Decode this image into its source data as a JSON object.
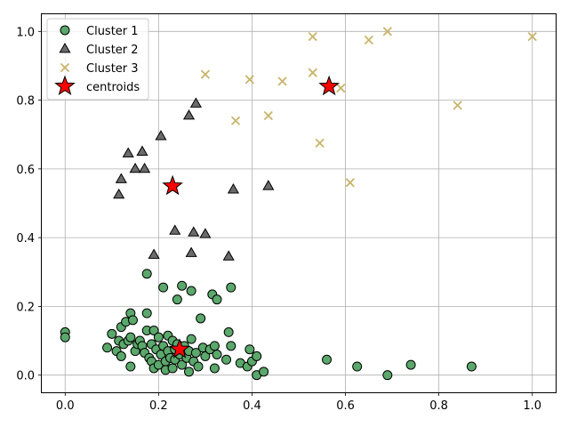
{
  "chart_data": {
    "type": "scatter",
    "xlim": [
      -0.05,
      1.05
    ],
    "ylim": [
      -0.05,
      1.05
    ],
    "x_ticks": [
      0.0,
      0.2,
      0.4,
      0.6,
      0.8,
      1.0
    ],
    "y_ticks": [
      0.0,
      0.2,
      0.4,
      0.6,
      0.8,
      1.0
    ],
    "x_tick_labels": [
      "0.0",
      "0.2",
      "0.4",
      "0.6",
      "0.8",
      "1.0"
    ],
    "y_tick_labels": [
      "0.0",
      "0.2",
      "0.4",
      "0.6",
      "0.8",
      "1.0"
    ],
    "grid": true,
    "legend_position": "top-left",
    "series": [
      {
        "name": "Cluster 1",
        "marker": "circle",
        "color": "#5aa86b",
        "points": [
          [
            0.0,
            0.125
          ],
          [
            0.0,
            0.11
          ],
          [
            0.09,
            0.08
          ],
          [
            0.1,
            0.12
          ],
          [
            0.11,
            0.07
          ],
          [
            0.115,
            0.1
          ],
          [
            0.12,
            0.055
          ],
          [
            0.12,
            0.14
          ],
          [
            0.125,
            0.09
          ],
          [
            0.13,
            0.155
          ],
          [
            0.135,
            0.1
          ],
          [
            0.14,
            0.18
          ],
          [
            0.14,
            0.11
          ],
          [
            0.14,
            0.025
          ],
          [
            0.145,
            0.16
          ],
          [
            0.15,
            0.07
          ],
          [
            0.155,
            0.09
          ],
          [
            0.16,
            0.1
          ],
          [
            0.165,
            0.085
          ],
          [
            0.17,
            0.065
          ],
          [
            0.175,
            0.18
          ],
          [
            0.175,
            0.13
          ],
          [
            0.175,
            0.295
          ],
          [
            0.18,
            0.05
          ],
          [
            0.185,
            0.04
          ],
          [
            0.185,
            0.09
          ],
          [
            0.19,
            0.02
          ],
          [
            0.19,
            0.13
          ],
          [
            0.195,
            0.075
          ],
          [
            0.2,
            0.03
          ],
          [
            0.2,
            0.11
          ],
          [
            0.205,
            0.06
          ],
          [
            0.21,
            0.255
          ],
          [
            0.21,
            0.085
          ],
          [
            0.215,
            0.04
          ],
          [
            0.215,
            0.015
          ],
          [
            0.22,
            0.115
          ],
          [
            0.22,
            0.07
          ],
          [
            0.225,
            0.05
          ],
          [
            0.23,
            0.1
          ],
          [
            0.23,
            0.02
          ],
          [
            0.235,
            0.075
          ],
          [
            0.235,
            0.045
          ],
          [
            0.24,
            0.22
          ],
          [
            0.24,
            0.09
          ],
          [
            0.245,
            0.06
          ],
          [
            0.25,
            0.26
          ],
          [
            0.25,
            0.03
          ],
          [
            0.255,
            0.085
          ],
          [
            0.26,
            0.05
          ],
          [
            0.265,
            0.01
          ],
          [
            0.265,
            0.07
          ],
          [
            0.27,
            0.245
          ],
          [
            0.27,
            0.105
          ],
          [
            0.275,
            0.04
          ],
          [
            0.28,
            0.065
          ],
          [
            0.285,
            0.025
          ],
          [
            0.29,
            0.165
          ],
          [
            0.295,
            0.08
          ],
          [
            0.3,
            0.055
          ],
          [
            0.31,
            0.075
          ],
          [
            0.315,
            0.235
          ],
          [
            0.32,
            0.02
          ],
          [
            0.32,
            0.085
          ],
          [
            0.325,
            0.22
          ],
          [
            0.325,
            0.06
          ],
          [
            0.345,
            0.045
          ],
          [
            0.35,
            0.125
          ],
          [
            0.355,
            0.085
          ],
          [
            0.355,
            0.255
          ],
          [
            0.375,
            0.035
          ],
          [
            0.39,
            0.025
          ],
          [
            0.395,
            0.075
          ],
          [
            0.4,
            0.04
          ],
          [
            0.41,
            0.055
          ],
          [
            0.41,
            0.0
          ],
          [
            0.425,
            0.01
          ],
          [
            0.56,
            0.045
          ],
          [
            0.625,
            0.025
          ],
          [
            0.69,
            0.0
          ],
          [
            0.74,
            0.03
          ],
          [
            0.87,
            0.025
          ]
        ]
      },
      {
        "name": "Cluster 2",
        "marker": "triangle",
        "color": "#6b6b6b",
        "points": [
          [
            0.115,
            0.525
          ],
          [
            0.12,
            0.57
          ],
          [
            0.135,
            0.645
          ],
          [
            0.15,
            0.6
          ],
          [
            0.165,
            0.65
          ],
          [
            0.17,
            0.6
          ],
          [
            0.19,
            0.35
          ],
          [
            0.205,
            0.695
          ],
          [
            0.235,
            0.42
          ],
          [
            0.265,
            0.755
          ],
          [
            0.27,
            0.355
          ],
          [
            0.275,
            0.415
          ],
          [
            0.28,
            0.79
          ],
          [
            0.3,
            0.41
          ],
          [
            0.35,
            0.345
          ],
          [
            0.36,
            0.54
          ],
          [
            0.435,
            0.55
          ]
        ]
      },
      {
        "name": "Cluster 3",
        "marker": "x",
        "color": "#c9b46a",
        "points": [
          [
            0.3,
            0.875
          ],
          [
            0.365,
            0.74
          ],
          [
            0.395,
            0.86
          ],
          [
            0.435,
            0.755
          ],
          [
            0.465,
            0.855
          ],
          [
            0.53,
            0.985
          ],
          [
            0.53,
            0.88
          ],
          [
            0.545,
            0.675
          ],
          [
            0.59,
            0.835
          ],
          [
            0.61,
            0.56
          ],
          [
            0.65,
            0.975
          ],
          [
            0.69,
            1.0
          ],
          [
            0.84,
            0.785
          ],
          [
            1.0,
            0.985
          ]
        ]
      },
      {
        "name": "centroids",
        "marker": "star",
        "color": "#ff0000",
        "points": [
          [
            0.245,
            0.075
          ],
          [
            0.23,
            0.55
          ],
          [
            0.565,
            0.84
          ]
        ]
      }
    ]
  }
}
